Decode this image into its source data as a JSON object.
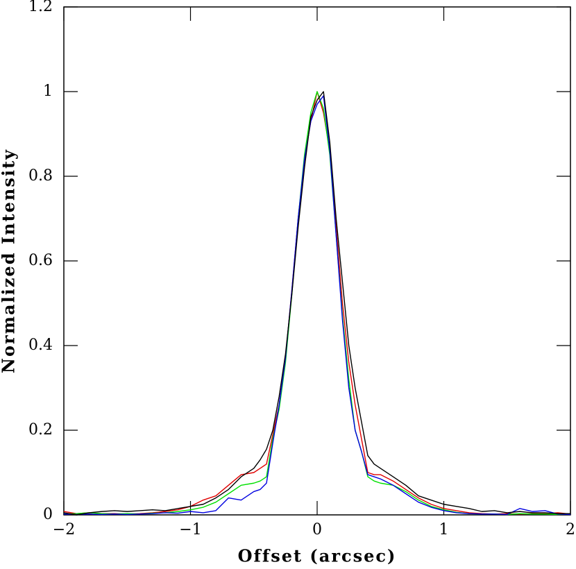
{
  "chart_data": {
    "type": "line",
    "xlabel": "Offset (arcsec)",
    "ylabel": "Normalized Intensity",
    "x": [
      -2,
      -1.9,
      -1.8,
      -1.7,
      -1.6,
      -1.5,
      -1.4,
      -1.3,
      -1.2,
      -1.1,
      -1,
      -0.9,
      -0.8,
      -0.7,
      -0.6,
      -0.5,
      -0.45,
      -0.4,
      -0.35,
      -0.3,
      -0.25,
      -0.2,
      -0.15,
      -0.1,
      -0.05,
      0,
      0.05,
      0.1,
      0.15,
      0.2,
      0.25,
      0.3,
      0.35,
      0.4,
      0.45,
      0.5,
      0.6,
      0.7,
      0.8,
      0.9,
      1,
      1.1,
      1.2,
      1.3,
      1.4,
      1.5,
      1.6,
      1.7,
      1.8,
      1.9,
      2
    ],
    "series": [
      {
        "color": "#e00000",
        "values": [
          0.008,
          0.003,
          0.005,
          0.003,
          0.003,
          0.002,
          0.003,
          0.005,
          0.008,
          0.012,
          0.02,
          0.035,
          0.045,
          0.07,
          0.095,
          0.1,
          0.11,
          0.12,
          0.19,
          0.26,
          0.37,
          0.53,
          0.7,
          0.84,
          0.93,
          1.0,
          0.95,
          0.86,
          0.68,
          0.5,
          0.36,
          0.26,
          0.18,
          0.1,
          0.095,
          0.095,
          0.08,
          0.06,
          0.04,
          0.025,
          0.015,
          0.01,
          0.005,
          0.003,
          0.002,
          0.003,
          0.002,
          0.003,
          0.003,
          0.005,
          0.002
        ]
      },
      {
        "color": "#00e000",
        "values": [
          0.002,
          0.003,
          0.005,
          0.003,
          0.002,
          0.003,
          0.002,
          0.004,
          0.005,
          0.008,
          0.012,
          0.018,
          0.03,
          0.05,
          0.07,
          0.075,
          0.08,
          0.09,
          0.18,
          0.25,
          0.36,
          0.52,
          0.7,
          0.85,
          0.95,
          1.0,
          0.96,
          0.85,
          0.66,
          0.47,
          0.32,
          0.2,
          0.15,
          0.09,
          0.08,
          0.075,
          0.07,
          0.055,
          0.035,
          0.02,
          0.012,
          0.006,
          0.003,
          0.002,
          0.002,
          0.001,
          0.003,
          0.002,
          0.002,
          0.001,
          0.002
        ]
      },
      {
        "color": "#0000e0",
        "values": [
          0.002,
          0.001,
          0.002,
          0.001,
          0.002,
          0.001,
          0.002,
          0.003,
          0.005,
          0.004,
          0.008,
          0.005,
          0.01,
          0.04,
          0.035,
          0.055,
          0.06,
          0.075,
          0.17,
          0.26,
          0.37,
          0.53,
          0.7,
          0.84,
          0.93,
          0.97,
          0.99,
          0.86,
          0.66,
          0.46,
          0.3,
          0.2,
          0.15,
          0.095,
          0.09,
          0.085,
          0.07,
          0.05,
          0.03,
          0.018,
          0.01,
          0.005,
          0.003,
          0.002,
          0.002,
          0.001,
          0.015,
          0.008,
          0.01,
          0.002,
          0.001
        ]
      },
      {
        "color": "#000000",
        "values": [
          0.005,
          0,
          0.005,
          0.008,
          0.01,
          0.008,
          0.01,
          0.012,
          0.01,
          0.015,
          0.02,
          0.025,
          0.04,
          0.06,
          0.09,
          0.11,
          0.13,
          0.155,
          0.2,
          0.28,
          0.38,
          0.52,
          0.68,
          0.82,
          0.94,
          0.98,
          1.0,
          0.88,
          0.7,
          0.55,
          0.4,
          0.3,
          0.22,
          0.14,
          0.12,
          0.11,
          0.09,
          0.07,
          0.045,
          0.035,
          0.025,
          0.02,
          0.015,
          0.008,
          0.01,
          0.005,
          0.008,
          0.005,
          0.005,
          0.003,
          0.003
        ]
      }
    ],
    "xlim": [
      -2,
      2
    ],
    "ylim": [
      0,
      1.2
    ],
    "xticks": [
      {
        "value": -2,
        "label": "−2"
      },
      {
        "value": -1,
        "label": "−1"
      },
      0,
      1,
      2
    ],
    "yticks": [
      0,
      0.2,
      0.4,
      0.6,
      0.8,
      1,
      1.2
    ]
  }
}
